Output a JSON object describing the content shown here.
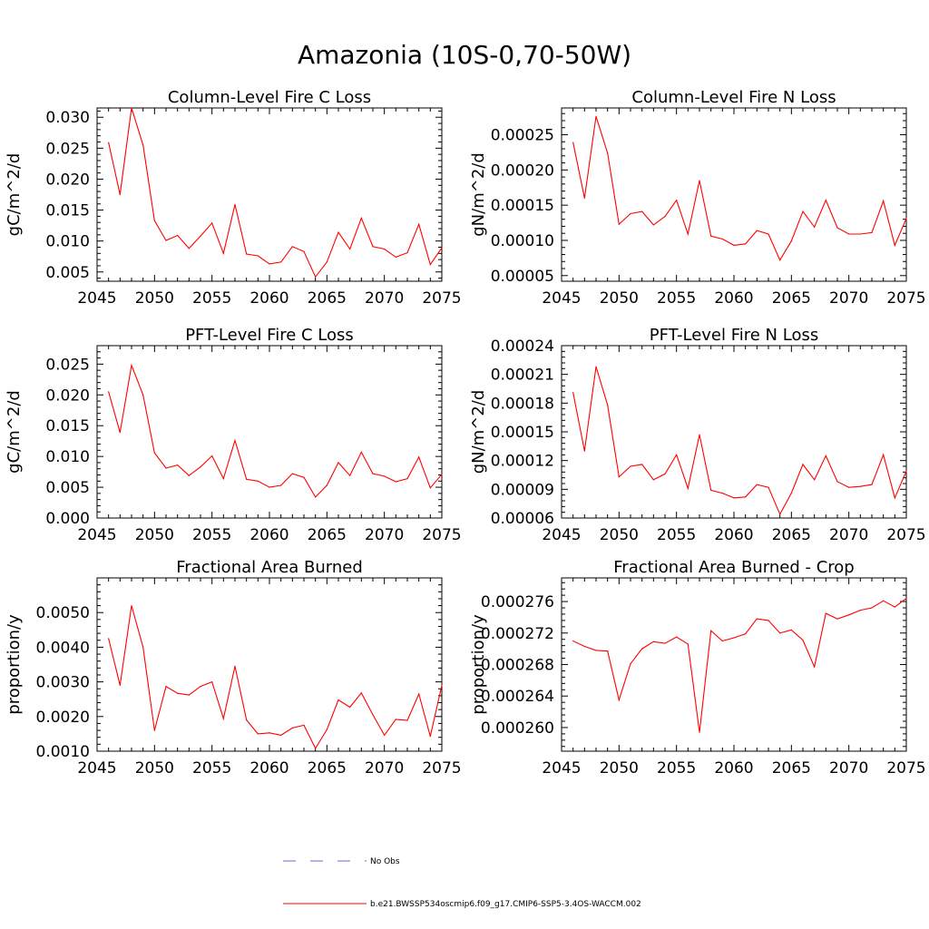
{
  "title": "Amazonia (10S-0,70-50W)",
  "legend": {
    "entries": [
      {
        "label": "No Obs",
        "color": "#6a6ad0",
        "dash": true
      },
      {
        "label": "b.e21.BWSSP534oscmip6.f09_g17.CMIP6-SSP5-3.4OS-WACCM.002",
        "color": "#ff0000",
        "dash": false
      }
    ]
  },
  "chart_data": [
    {
      "type": "line",
      "title": "Column-Level Fire C Loss",
      "ylabel": "gC/m^2/d",
      "xlim": [
        2045,
        2075
      ],
      "ylim": [
        0.0035,
        0.0315
      ],
      "xticks": [
        2045,
        2050,
        2055,
        2060,
        2065,
        2070,
        2075
      ],
      "xtick_labels": [
        "2045",
        "2050",
        "2055",
        "2060",
        "2065",
        "2070",
        "2075"
      ],
      "yticks": [
        0.005,
        0.01,
        0.015,
        0.02,
        0.025,
        0.03
      ],
      "ytick_labels": [
        "0.005",
        "0.010",
        "0.015",
        "0.020",
        "0.025",
        "0.030"
      ],
      "series": [
        {
          "color": "#ff0000",
          "x": [
            2046,
            2047,
            2048,
            2049,
            2050,
            2051,
            2052,
            2053,
            2054,
            2055,
            2056,
            2057,
            2058,
            2059,
            2060,
            2061,
            2062,
            2063,
            2064,
            2065,
            2066,
            2067,
            2068,
            2069,
            2070,
            2071,
            2072,
            2073,
            2074,
            2075
          ],
          "values": [
            0.0259,
            0.0175,
            0.0315,
            0.0255,
            0.0133,
            0.0101,
            0.0109,
            0.0088,
            0.0108,
            0.0129,
            0.008,
            0.0159,
            0.0079,
            0.0076,
            0.0063,
            0.0066,
            0.0091,
            0.0083,
            0.0042,
            0.0066,
            0.0114,
            0.0087,
            0.0137,
            0.0091,
            0.0087,
            0.0074,
            0.0081,
            0.0127,
            0.0062,
            0.0089
          ]
        }
      ]
    },
    {
      "type": "line",
      "title": "Column-Level Fire N Loss",
      "ylabel": "gN/m^2/d",
      "xlim": [
        2045,
        2075
      ],
      "ylim": [
        4.2e-05,
        0.000288
      ],
      "xticks": [
        2045,
        2050,
        2055,
        2060,
        2065,
        2070,
        2075
      ],
      "xtick_labels": [
        "2045",
        "2050",
        "2055",
        "2060",
        "2065",
        "2070",
        "2075"
      ],
      "yticks": [
        5e-05,
        0.0001,
        0.00015,
        0.0002,
        0.00025
      ],
      "ytick_labels": [
        "0.00005",
        "0.00010",
        "0.00015",
        "0.00020",
        "0.00025"
      ],
      "series": [
        {
          "color": "#ff0000",
          "x": [
            2046,
            2047,
            2048,
            2049,
            2050,
            2051,
            2052,
            2053,
            2054,
            2055,
            2056,
            2057,
            2058,
            2059,
            2060,
            2061,
            2062,
            2063,
            2064,
            2065,
            2066,
            2067,
            2068,
            2069,
            2070,
            2071,
            2072,
            2073,
            2074,
            2075
          ],
          "values": [
            0.000239,
            0.00016,
            0.000276,
            0.000224,
            0.000123,
            0.000138,
            0.000141,
            0.000122,
            0.000134,
            0.000157,
            0.000109,
            0.000185,
            0.000106,
            0.000102,
            9.3e-05,
            9.5e-05,
            0.000114,
            0.000109,
            7.2e-05,
            9.9e-05,
            0.000141,
            0.000119,
            0.000157,
            0.000118,
            0.000109,
            0.000109,
            0.000111,
            0.000156,
            9.3e-05,
            0.000131
          ]
        }
      ]
    },
    {
      "type": "line",
      "title": "PFT-Level Fire C Loss",
      "ylabel": "gC/m^2/d",
      "xlim": [
        2045,
        2075
      ],
      "ylim": [
        0.0,
        0.028
      ],
      "xticks": [
        2045,
        2050,
        2055,
        2060,
        2065,
        2070,
        2075
      ],
      "xtick_labels": [
        "2045",
        "2050",
        "2055",
        "2060",
        "2065",
        "2070",
        "2075"
      ],
      "yticks": [
        0.0,
        0.005,
        0.01,
        0.015,
        0.02,
        0.025
      ],
      "ytick_labels": [
        "0.000",
        "0.005",
        "0.010",
        "0.015",
        "0.020",
        "0.025"
      ],
      "series": [
        {
          "color": "#ff0000",
          "x": [
            2046,
            2047,
            2048,
            2049,
            2050,
            2051,
            2052,
            2053,
            2054,
            2055,
            2056,
            2057,
            2058,
            2059,
            2060,
            2061,
            2062,
            2063,
            2064,
            2065,
            2066,
            2067,
            2068,
            2069,
            2070,
            2071,
            2072,
            2073,
            2074,
            2075
          ],
          "values": [
            0.0205,
            0.0139,
            0.0248,
            0.02,
            0.0106,
            0.0081,
            0.0086,
            0.0069,
            0.0083,
            0.0101,
            0.0064,
            0.0126,
            0.0063,
            0.006,
            0.005,
            0.0053,
            0.0072,
            0.0066,
            0.0034,
            0.0053,
            0.009,
            0.0069,
            0.0107,
            0.0072,
            0.0068,
            0.0059,
            0.0064,
            0.0099,
            0.0049,
            0.0071
          ]
        }
      ]
    },
    {
      "type": "line",
      "title": "PFT-Level Fire N Loss",
      "ylabel": "gN/m^2/d",
      "xlim": [
        2045,
        2075
      ],
      "ylim": [
        6e-05,
        0.00024
      ],
      "xticks": [
        2045,
        2050,
        2055,
        2060,
        2065,
        2070,
        2075
      ],
      "xtick_labels": [
        "2045",
        "2050",
        "2055",
        "2060",
        "2065",
        "2070",
        "2075"
      ],
      "yticks": [
        6e-05,
        9e-05,
        0.00012,
        0.00015,
        0.00018,
        0.00021,
        0.00024
      ],
      "ytick_labels": [
        "0.00006",
        "0.00009",
        "0.00012",
        "0.00015",
        "0.00018",
        "0.00021",
        "0.00024"
      ],
      "series": [
        {
          "color": "#ff0000",
          "x": [
            2046,
            2047,
            2048,
            2049,
            2050,
            2051,
            2052,
            2053,
            2054,
            2055,
            2056,
            2057,
            2058,
            2059,
            2060,
            2061,
            2062,
            2063,
            2064,
            2065,
            2066,
            2067,
            2068,
            2069,
            2070,
            2071,
            2072,
            2073,
            2074,
            2075
          ],
          "values": [
            0.000191,
            0.00013,
            0.000218,
            0.000178,
            0.000103,
            0.000114,
            0.000116,
            0.0001,
            0.000106,
            0.000126,
            9.1e-05,
            0.000147,
            8.9e-05,
            8.6e-05,
            8.1e-05,
            8.2e-05,
            9.5e-05,
            9.2e-05,
            6.4e-05,
            8.6e-05,
            0.000116,
            0.0001,
            0.000125,
            9.8e-05,
            9.2e-05,
            9.3e-05,
            9.5e-05,
            0.000126,
            8.1e-05,
            0.000109
          ]
        }
      ]
    },
    {
      "type": "line",
      "title": "Fractional Area Burned",
      "ylabel": "proportion/y",
      "xlim": [
        2045,
        2075
      ],
      "ylim": [
        0.001,
        0.006
      ],
      "xticks": [
        2045,
        2050,
        2055,
        2060,
        2065,
        2070,
        2075
      ],
      "xtick_labels": [
        "2045",
        "2050",
        "2055",
        "2060",
        "2065",
        "2070",
        "2075"
      ],
      "yticks": [
        0.001,
        0.002,
        0.003,
        0.004,
        0.005
      ],
      "ytick_labels": [
        "0.0010",
        "0.0020",
        "0.0030",
        "0.0040",
        "0.0050"
      ],
      "series": [
        {
          "color": "#ff0000",
          "x": [
            2046,
            2047,
            2048,
            2049,
            2050,
            2051,
            2052,
            2053,
            2054,
            2055,
            2056,
            2057,
            2058,
            2059,
            2060,
            2061,
            2062,
            2063,
            2064,
            2065,
            2066,
            2067,
            2068,
            2069,
            2070,
            2071,
            2072,
            2073,
            2074,
            2075
          ],
          "values": [
            0.00425,
            0.0029,
            0.0052,
            0.004,
            0.0016,
            0.00287,
            0.00267,
            0.00262,
            0.00287,
            0.003,
            0.00194,
            0.00345,
            0.0019,
            0.0015,
            0.00153,
            0.00146,
            0.00167,
            0.00175,
            0.00108,
            0.00162,
            0.00248,
            0.00227,
            0.00268,
            0.00205,
            0.00146,
            0.00192,
            0.00189,
            0.00265,
            0.00143,
            0.0029
          ]
        }
      ]
    },
    {
      "type": "line",
      "title": "Fractional Area Burned - Crop",
      "ylabel": "proportion/y",
      "xlim": [
        2045,
        2075
      ],
      "ylim": [
        0.000257,
        0.000279
      ],
      "xticks": [
        2045,
        2050,
        2055,
        2060,
        2065,
        2070,
        2075
      ],
      "xtick_labels": [
        "2045",
        "2050",
        "2055",
        "2060",
        "2065",
        "2070",
        "2075"
      ],
      "yticks": [
        0.00026,
        0.000264,
        0.000268,
        0.000272,
        0.000276
      ],
      "ytick_labels": [
        "0.000260",
        "0.000264",
        "0.000268",
        "0.000272",
        "0.000276"
      ],
      "series": [
        {
          "color": "#ff0000",
          "x": [
            2046,
            2047,
            2048,
            2049,
            2050,
            2051,
            2052,
            2053,
            2054,
            2055,
            2056,
            2057,
            2058,
            2059,
            2060,
            2061,
            2062,
            2063,
            2064,
            2065,
            2066,
            2067,
            2068,
            2069,
            2070,
            2071,
            2072,
            2073,
            2074,
            2075
          ],
          "values": [
            0.000271,
            0.0002703,
            0.0002698,
            0.0002697,
            0.0002635,
            0.0002681,
            0.00027,
            0.0002709,
            0.0002707,
            0.0002715,
            0.0002706,
            0.0002594,
            0.0002723,
            0.000271,
            0.0002714,
            0.0002719,
            0.0002738,
            0.0002736,
            0.000272,
            0.0002724,
            0.0002711,
            0.0002677,
            0.0002745,
            0.0002738,
            0.0002743,
            0.0002749,
            0.0002752,
            0.0002761,
            0.0002753,
            0.0002764
          ]
        }
      ]
    }
  ]
}
